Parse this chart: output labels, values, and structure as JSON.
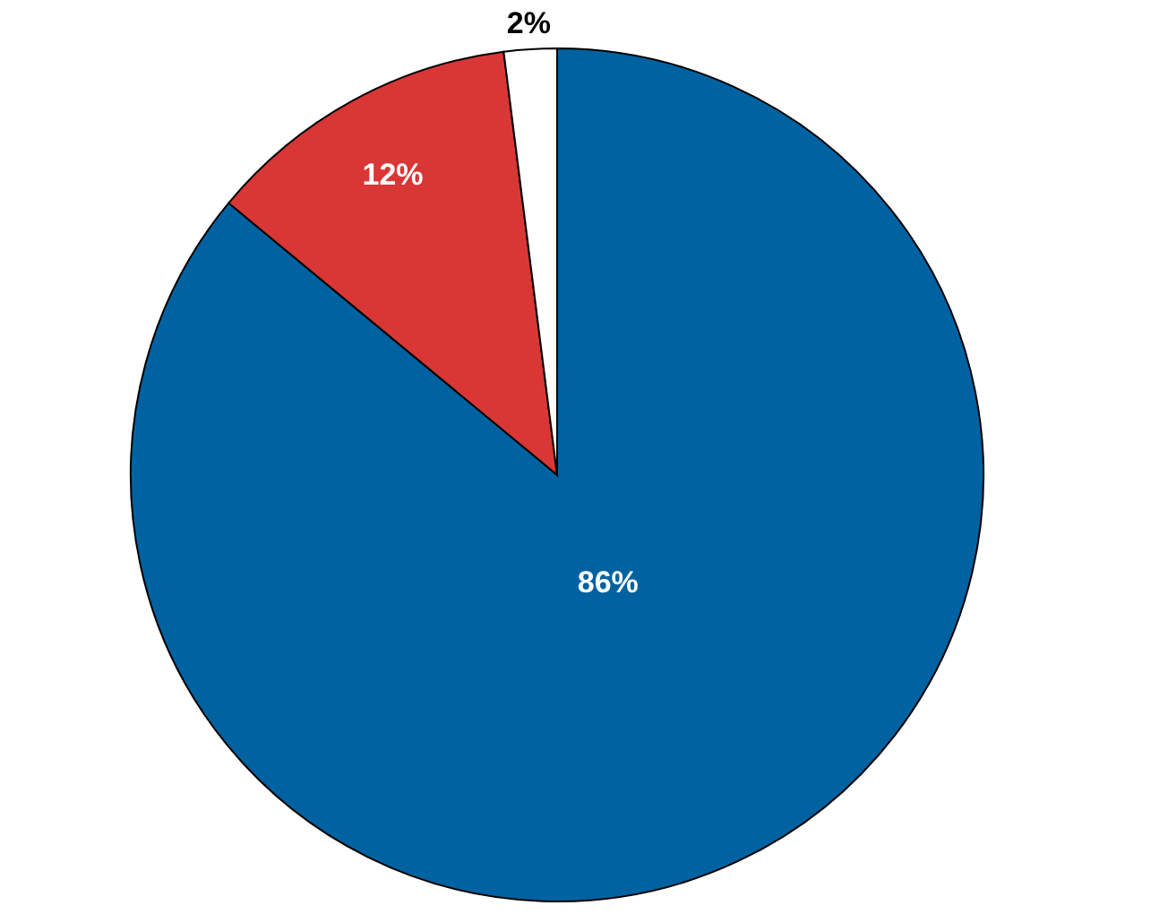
{
  "chart_data": {
    "type": "pie",
    "categories": [
      null,
      null,
      null
    ],
    "values": [
      86,
      12,
      2
    ],
    "colors": [
      "#0062a1",
      "#d93636",
      "#ffffff"
    ],
    "data_labels": true,
    "value_labels": [
      "86%",
      "12%",
      "2%"
    ]
  }
}
